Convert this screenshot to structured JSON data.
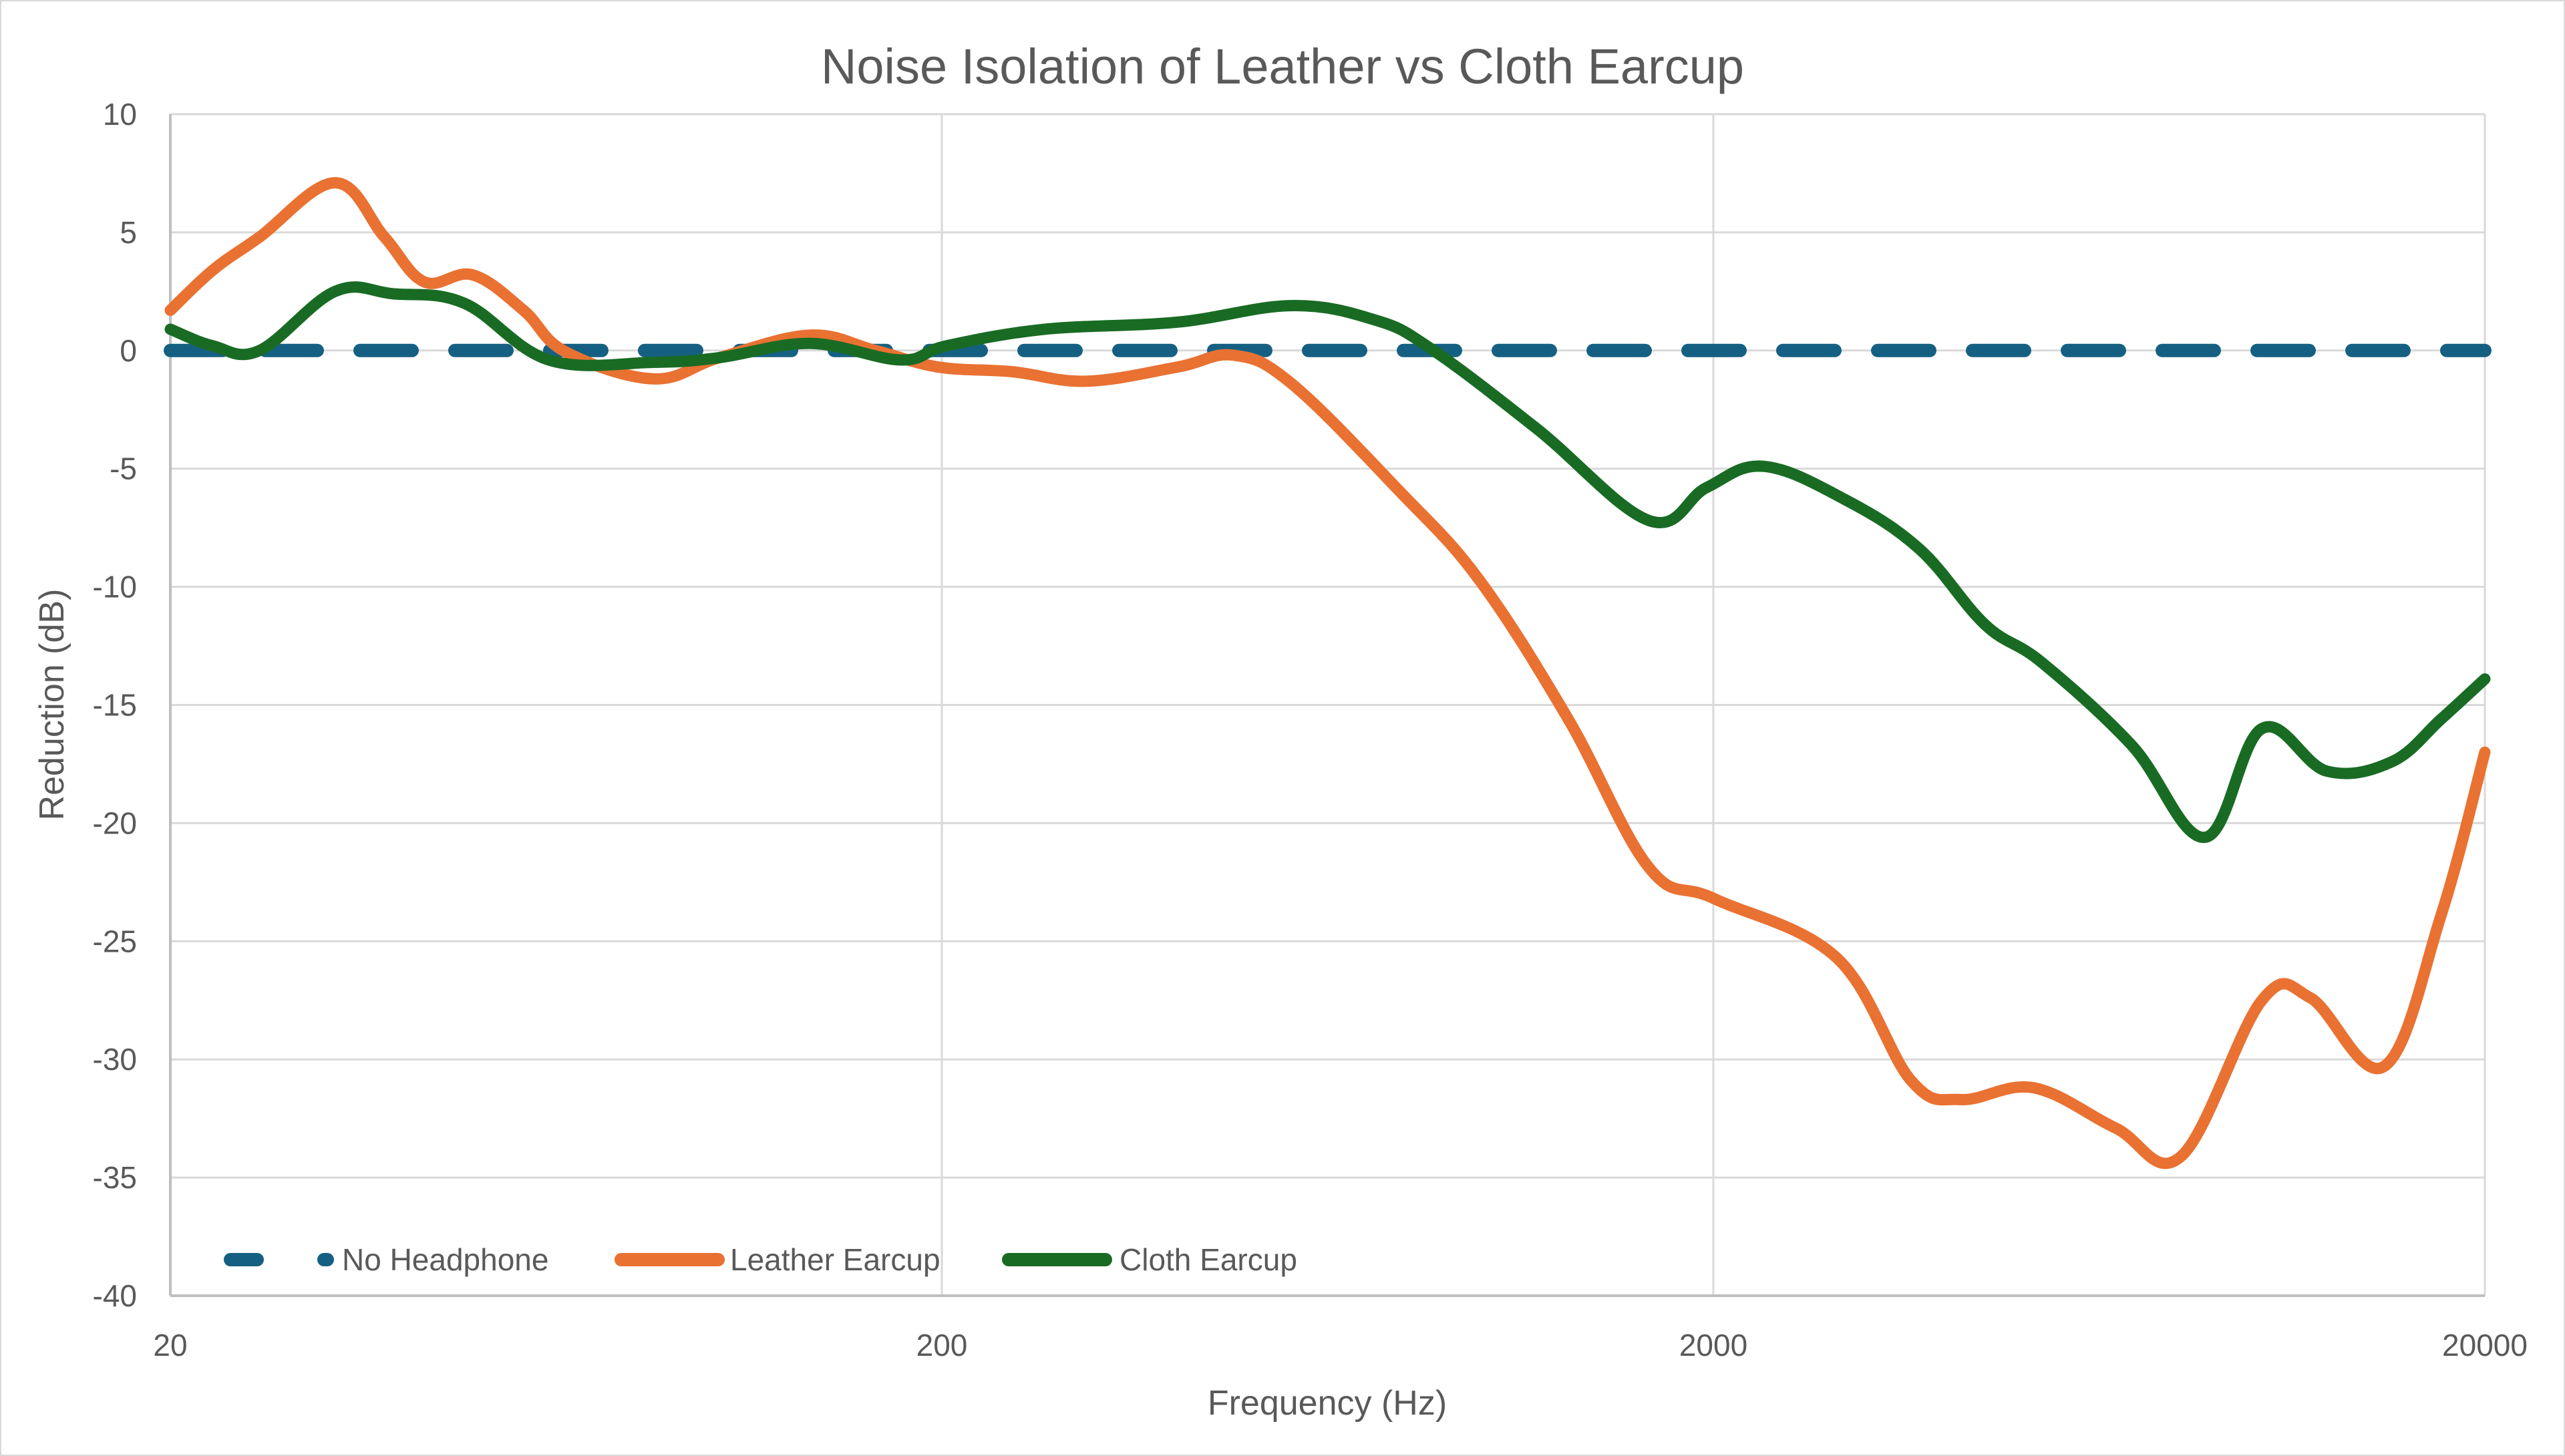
{
  "chart_data": {
    "type": "line",
    "title": "Noise Isolation of Leather vs Cloth Earcup",
    "xlabel": "Frequency (Hz)",
    "ylabel": "Reduction (dB)",
    "xscale": "log",
    "xlim": [
      20,
      20000
    ],
    "ylim": [
      -40,
      10
    ],
    "x_ticks": [
      20,
      200,
      2000,
      20000
    ],
    "x_tick_labels": [
      "20",
      "200",
      "2000",
      "20000"
    ],
    "y_ticks": [
      10,
      5,
      0,
      -5,
      -10,
      -15,
      -20,
      -25,
      -30,
      -35,
      -40
    ],
    "y_tick_labels": [
      "10",
      "5",
      "0",
      "-5",
      "-10",
      "-15",
      "-20",
      "-25",
      "-30",
      "-35",
      "-40"
    ],
    "grid": true,
    "legend_position": "bottom-left inside",
    "series": [
      {
        "name": "No Headphone",
        "color": "#156082",
        "style": "dashed",
        "x": [
          20,
          20000
        ],
        "y": [
          0,
          0
        ]
      },
      {
        "name": "Leather Earcup",
        "color": "#e97132",
        "style": "solid",
        "x": [
          20,
          22.7,
          26.1,
          32.7,
          37.9,
          42.7,
          49.3,
          57.4,
          65,
          84.6,
          103,
          135,
          164,
          198,
          247,
          308,
          404,
          478,
          568,
          781,
          994,
          1297,
          1652,
          2006,
          2890,
          3610,
          4190,
          5200,
          6640,
          8080,
          10280,
          11890,
          14800,
          17550,
          20000
        ],
        "y": [
          1.7,
          3.4,
          4.8,
          7.1,
          4.8,
          2.9,
          3.2,
          1.7,
          -0.05,
          -1.2,
          -0.3,
          0.65,
          0,
          -0.7,
          -0.9,
          -1.3,
          -0.7,
          -0.2,
          -1.4,
          -5.9,
          -9.7,
          -15.6,
          -21.9,
          -23.2,
          -25.7,
          -30.9,
          -31.7,
          -31.2,
          -32.9,
          -34.1,
          -27.5,
          -27.4,
          -30.3,
          -23.9,
          -17.0
        ]
      },
      {
        "name": "Cloth Earcup",
        "color": "#196b24",
        "style": "solid",
        "x": [
          20,
          22.7,
          26.1,
          32.7,
          38.9,
          48.1,
          61.9,
          84.6,
          103,
          135,
          177,
          203,
          272,
          404,
          568,
          727,
          859,
          1180,
          1652,
          1960,
          2324,
          2960,
          3700,
          4500,
          5330,
          6970,
          8680,
          10280,
          12480,
          15160,
          17550,
          20000
        ],
        "y": [
          0.9,
          0.2,
          0,
          2.5,
          2.4,
          2.0,
          -0.4,
          -0.5,
          -0.3,
          0.3,
          -0.4,
          0.2,
          0.9,
          1.2,
          1.9,
          1.3,
          0.1,
          -3.3,
          -7.2,
          -5.8,
          -4.9,
          -6.3,
          -8.4,
          -11.6,
          -13.2,
          -16.7,
          -20.6,
          -16.0,
          -17.8,
          -17.4,
          -15.6,
          -13.9
        ]
      }
    ]
  }
}
